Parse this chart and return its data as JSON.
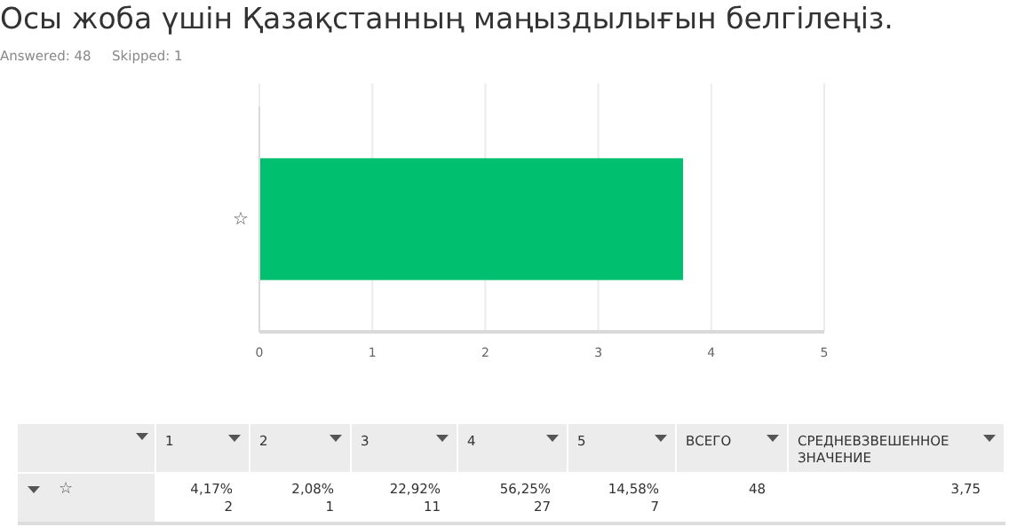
{
  "chart_data": {
    "type": "bar",
    "orientation": "horizontal",
    "title": "Осы жоба үшін Қазақстанның маңыздылығын белгілеңіз.",
    "categories": [
      "☆"
    ],
    "series": [
      {
        "color": "#00bf6f",
        "values": [
          3.75
        ]
      }
    ],
    "xlim": [
      0,
      5
    ],
    "xticks": [
      0,
      1,
      2,
      3,
      4,
      5
    ],
    "grid": "x",
    "annotations": [
      "Answered: 48",
      "Skipped: 1",
      "1",
      "2",
      "3",
      "4",
      "5",
      "ВСЕГО",
      "СРЕДНЕВЗВЕШЕННОЕ ЗНАЧЕНИЕ",
      "4,17%",
      "2",
      "2,08%",
      "1",
      "22,92%",
      "11",
      "56,25%",
      "27",
      "14,58%",
      "7",
      "48",
      "3,75"
    ]
  }
}
